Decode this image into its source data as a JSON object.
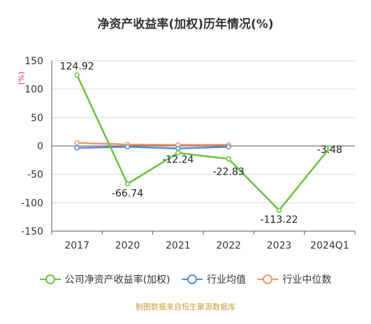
{
  "chart_data": {
    "type": "line",
    "title": "净资产收益率(加权)历年情况(%)",
    "ylabel": "(%)",
    "categories": [
      "2017",
      "2020",
      "2021",
      "2022",
      "2023",
      "2024Q1"
    ],
    "ylim": [
      -150,
      150
    ],
    "yticks": [
      "150",
      "100",
      "50",
      "0",
      "-50",
      "-100",
      "-150"
    ],
    "grid": true,
    "legend_position": "bottom",
    "series": [
      {
        "name": "公司净资产收益率(加权)",
        "color": "#6ac13f",
        "values": [
          124.92,
          -66.74,
          -12.24,
          -22.83,
          -113.22,
          -3.48
        ],
        "labels": [
          "124.92",
          "-66.74",
          "-12.24",
          "-22.83",
          "-113.22",
          "-3.48"
        ]
      },
      {
        "name": "行业均值",
        "color": "#5b8bd6",
        "values": [
          -3.5,
          -1.5,
          -4.5,
          -1.5,
          null,
          null
        ]
      },
      {
        "name": "行业中位数",
        "color": "#f0956a",
        "values": [
          5.5,
          2.5,
          1.8,
          2.0,
          null,
          null
        ]
      }
    ]
  },
  "source": "制图数据来自恒生聚源数据库"
}
